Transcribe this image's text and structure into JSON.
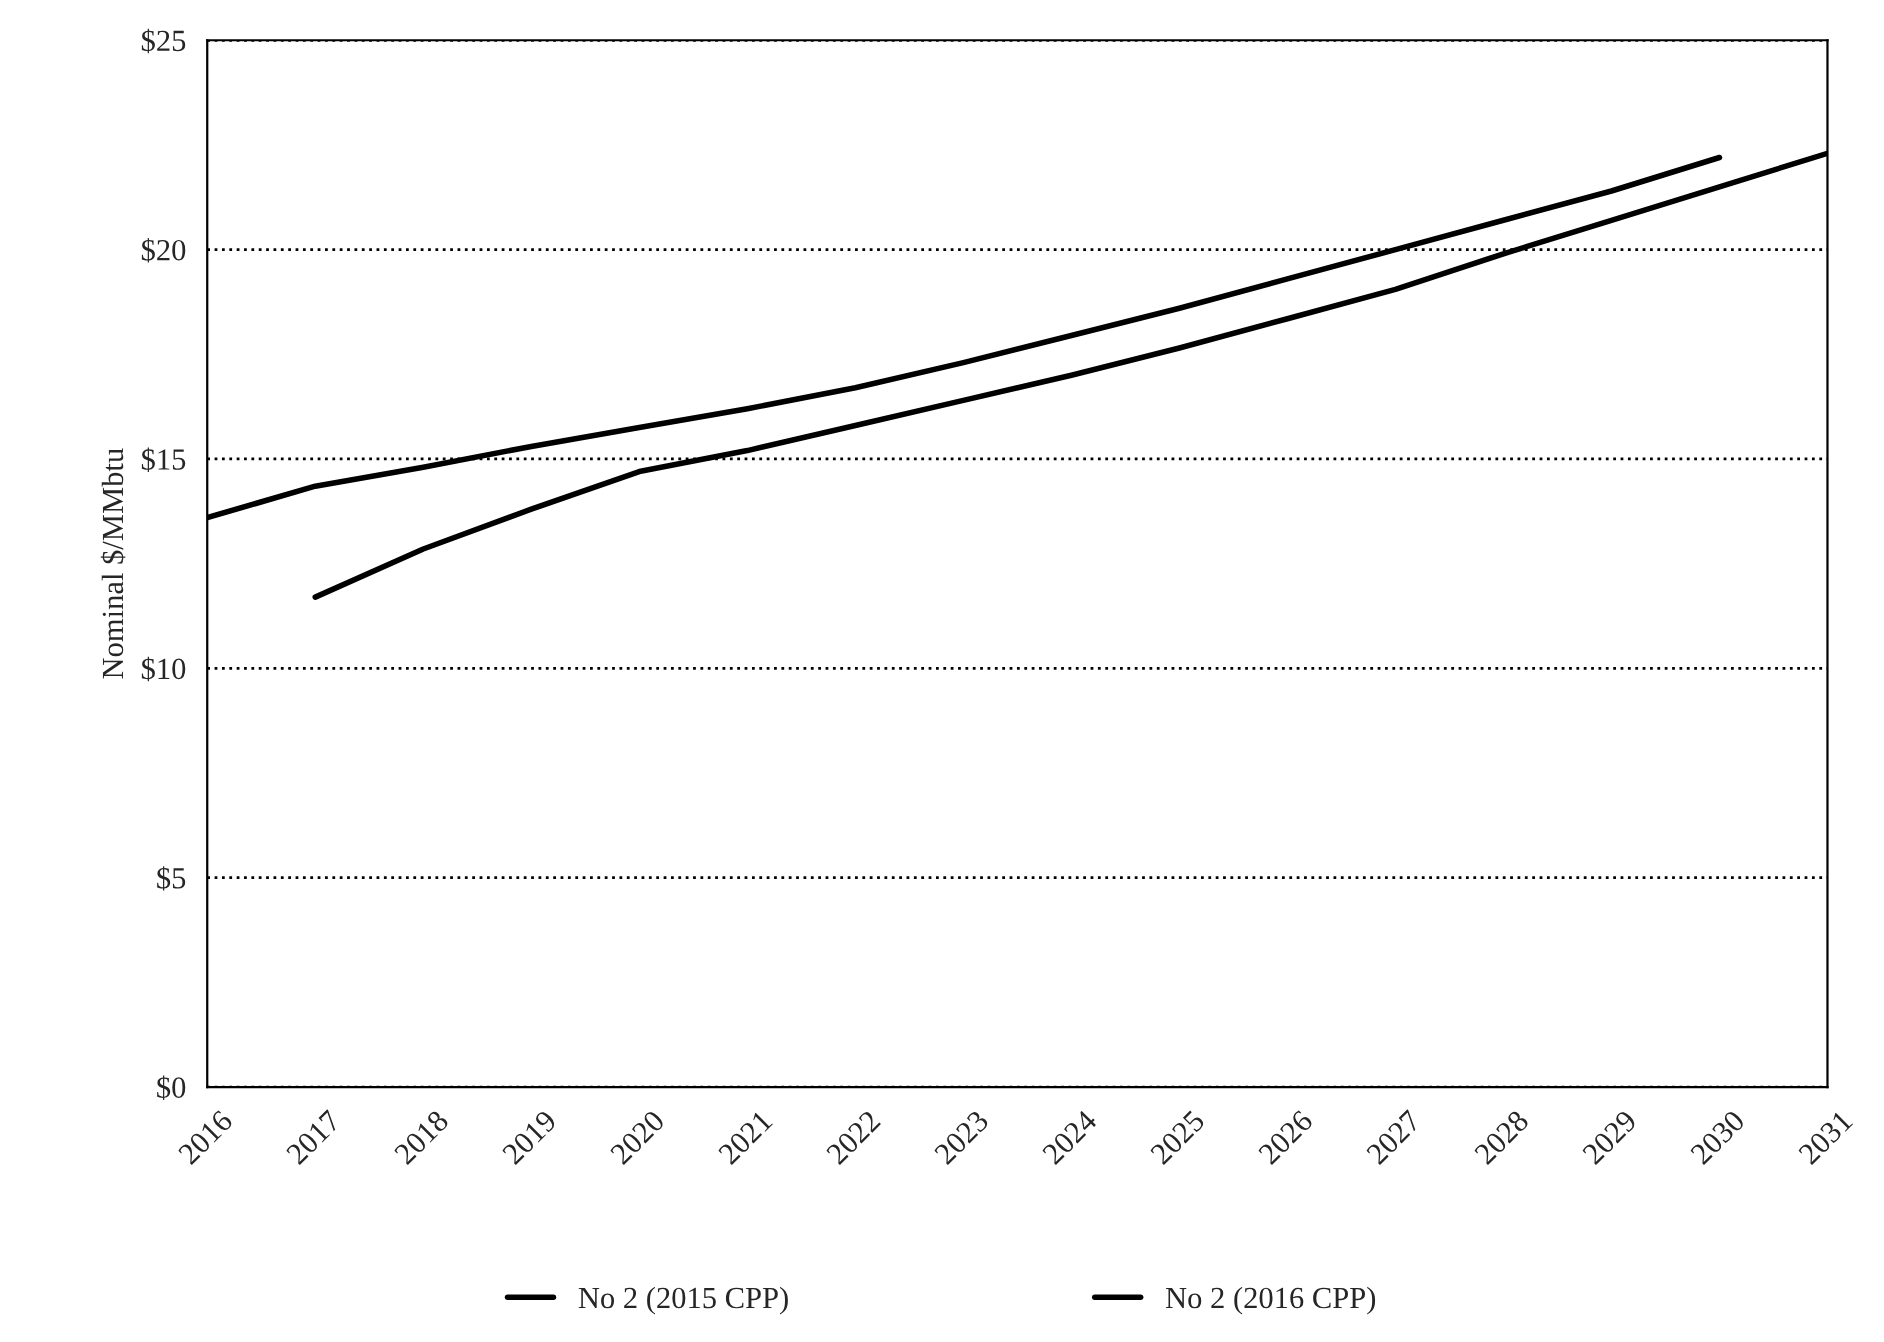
{
  "chart_data": {
    "type": "line",
    "ylabel": "Nominal $/MMbtu",
    "x": [
      2016,
      2017,
      2018,
      2019,
      2020,
      2021,
      2022,
      2023,
      2024,
      2025,
      2026,
      2027,
      2028,
      2029,
      2030,
      2031
    ],
    "series": [
      {
        "name": "No 2 (2015 CPP)",
        "color": "#000000",
        "values": [
          13.6,
          14.35,
          14.8,
          15.3,
          15.75,
          16.2,
          16.7,
          17.3,
          17.95,
          18.6,
          19.3,
          20.0,
          20.7,
          21.4,
          22.2,
          null
        ]
      },
      {
        "name": "No 2 (2016 CPP)",
        "color": "#000000",
        "values": [
          null,
          11.7,
          12.85,
          13.8,
          14.7,
          15.2,
          15.8,
          16.4,
          17.0,
          17.65,
          18.35,
          19.05,
          19.9,
          20.7,
          21.5,
          22.3
        ]
      }
    ],
    "xlim": [
      2016,
      2031
    ],
    "xticks": [
      2016,
      2017,
      2018,
      2019,
      2020,
      2021,
      2022,
      2023,
      2024,
      2025,
      2026,
      2027,
      2028,
      2029,
      2030,
      2031
    ],
    "ylim": [
      0,
      25
    ],
    "yticks": [
      {
        "value": 0,
        "label": "$0"
      },
      {
        "value": 5,
        "label": "$5"
      },
      {
        "value": 10,
        "label": "$10"
      },
      {
        "value": 15,
        "label": "$15"
      },
      {
        "value": 20,
        "label": "$20"
      },
      {
        "value": 25,
        "label": "$25"
      }
    ],
    "grid": "y",
    "line_style": "solid",
    "marker": "none",
    "legend": "bottom"
  }
}
